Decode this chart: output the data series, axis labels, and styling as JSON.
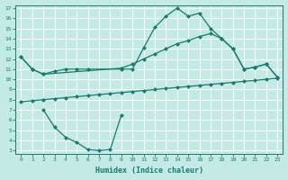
{
  "xlabel": "Humidex (Indice chaleur)",
  "bg_color": "#c3eae5",
  "grid_color": "#ffffff",
  "line_color": "#1a7a6e",
  "xlim": [
    -0.5,
    23.5
  ],
  "ylim": [
    3,
    17
  ],
  "xticks": [
    0,
    1,
    2,
    3,
    4,
    5,
    6,
    7,
    8,
    9,
    10,
    11,
    12,
    13,
    14,
    15,
    16,
    17,
    18,
    19,
    20,
    21,
    22,
    23
  ],
  "yticks": [
    3,
    4,
    5,
    6,
    7,
    8,
    9,
    10,
    11,
    12,
    13,
    14,
    15,
    16,
    17
  ],
  "series1_x": [
    0,
    1,
    2,
    3,
    4,
    5,
    6,
    9,
    10,
    11,
    12,
    13,
    14,
    15,
    16,
    17,
    18,
    19,
    20,
    21,
    22,
    23
  ],
  "series1_y": [
    12.2,
    11.0,
    10.5,
    10.8,
    11.0,
    11.0,
    11.0,
    11.0,
    11.0,
    13.1,
    15.1,
    16.2,
    17.0,
    16.2,
    16.5,
    15.0,
    14.0,
    13.0,
    11.0,
    11.2,
    11.5,
    10.2
  ],
  "series2_x": [
    0,
    1,
    2,
    9,
    10,
    11,
    12,
    13,
    14,
    15,
    16,
    17,
    18,
    19,
    20,
    21,
    22,
    23
  ],
  "series2_y": [
    12.2,
    11.0,
    10.5,
    11.1,
    11.5,
    12.0,
    12.5,
    13.0,
    13.5,
    13.8,
    14.2,
    14.5,
    14.0,
    13.0,
    11.0,
    11.2,
    11.5,
    10.2
  ],
  "series3_x": [
    0,
    1,
    2,
    3,
    4,
    5,
    6,
    7,
    8,
    9,
    10,
    11,
    12,
    13,
    14,
    15,
    16,
    17,
    18,
    19,
    20,
    21,
    22,
    23
  ],
  "series3_y": [
    7.8,
    7.9,
    8.0,
    8.1,
    8.2,
    8.3,
    8.4,
    8.5,
    8.6,
    8.7,
    8.8,
    8.9,
    9.0,
    9.1,
    9.2,
    9.3,
    9.4,
    9.5,
    9.6,
    9.7,
    9.8,
    9.9,
    10.0,
    10.1
  ],
  "series4_x": [
    2,
    3,
    4,
    5,
    6,
    7,
    8,
    9
  ],
  "series4_y": [
    7.0,
    5.3,
    4.3,
    3.8,
    3.1,
    3.0,
    3.1,
    6.5
  ]
}
